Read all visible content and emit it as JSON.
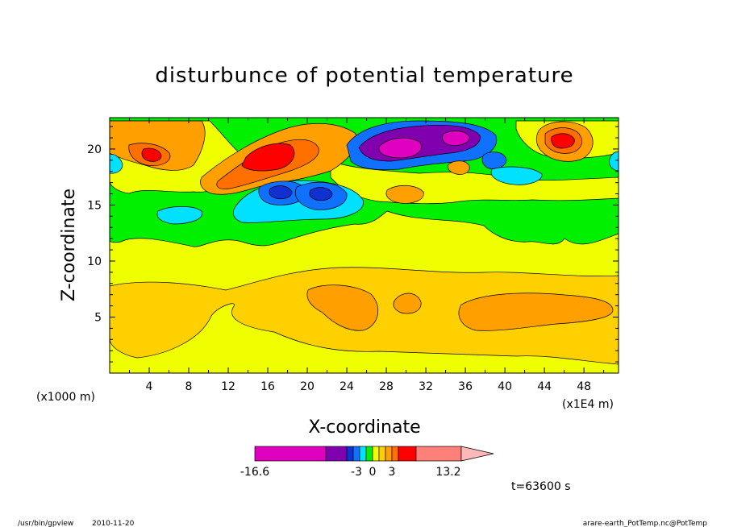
{
  "footer": {
    "left_program": "/usr/bin/gpview",
    "left_date": "2010-11-20",
    "right_source": "arare-earth_PotTemp.nc@PotTemp"
  },
  "time_label": "t=63600 s",
  "chart_data": {
    "type": "heatmap",
    "title": "disturbunce of potential temperature",
    "xlabel": "X-coordinate",
    "ylabel": "Z-coordinate",
    "x_units_left": "(x1000 m)",
    "x_units_right": "(x1E4 m)",
    "x_ticks": [
      4,
      8,
      12,
      16,
      20,
      24,
      28,
      32,
      36,
      40,
      44,
      48
    ],
    "y_ticks": [
      5,
      10,
      15,
      20
    ],
    "xlim": [
      0,
      51.5
    ],
    "ylim": [
      0,
      22.8
    ],
    "colorbar": {
      "labels": [
        "-16.6",
        "-3",
        "0",
        "3",
        "13.2"
      ],
      "min": -16.6,
      "max": 13.2,
      "colors": [
        "#e000c0",
        "#8000b0",
        "#1030d0",
        "#1070ff",
        "#00e0ff",
        "#00f000",
        "#f0ff00",
        "#ffd000",
        "#ffa000",
        "#ff7000",
        "#ff0000",
        "#ff8078",
        "#ffb8b8"
      ]
    },
    "features": [
      {
        "name": "upper-left warm band",
        "x": 6,
        "z": 19.5,
        "value": 6
      },
      {
        "name": "warm core",
        "x": 17,
        "z": 19,
        "value": 8
      },
      {
        "name": "cold core 1",
        "x": 17.5,
        "z": 16.5,
        "value": -6
      },
      {
        "name": "cold core 2",
        "x": 21,
        "z": 16,
        "value": -5
      },
      {
        "name": "strong cold core",
        "x": 30,
        "z": 20.5,
        "value": -12
      },
      {
        "name": "strong cold core east",
        "x": 35,
        "z": 21.3,
        "value": -11
      },
      {
        "name": "warm cell east",
        "x": 45.5,
        "z": 21,
        "value": 7
      },
      {
        "name": "lower warm layer west",
        "x": 8,
        "z": 5,
        "value": 1
      },
      {
        "name": "lower warm layer center",
        "x": 29,
        "z": 5.5,
        "value": 2
      },
      {
        "name": "lower warm layer east",
        "x": 44,
        "z": 5.3,
        "value": 2
      }
    ]
  }
}
